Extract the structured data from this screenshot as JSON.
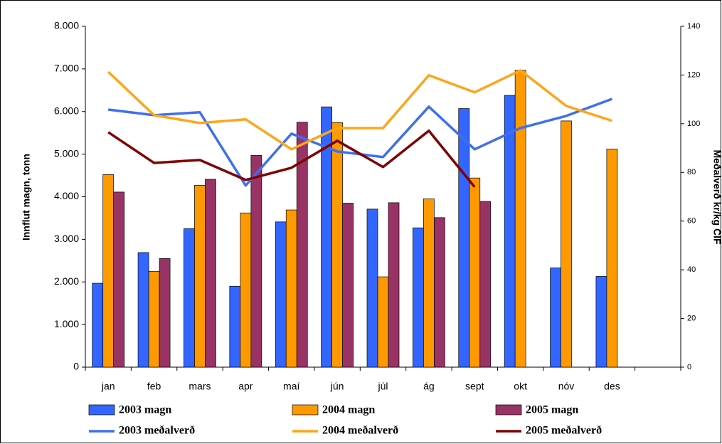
{
  "chart_data": {
    "type": "bar",
    "y_label": "Innflut magn, tonn",
    "y2_label": "Meðalverð kr/kg CIF",
    "categories": [
      "jan",
      "feb",
      "mars",
      "apr",
      "maí",
      "jún",
      "júl",
      "ág",
      "sept",
      "okt",
      "nóv",
      "des",
      null
    ],
    "series": [
      {
        "name": "2003 magn",
        "type": "bar",
        "color": "#3366ff",
        "values": [
          1970,
          2690,
          3250,
          1900,
          3410,
          6110,
          3710,
          3270,
          6070,
          6380,
          2330,
          2130,
          null
        ]
      },
      {
        "name": "2004 magn",
        "type": "bar",
        "color": "#ff9900",
        "values": [
          4520,
          2250,
          4270,
          3620,
          3690,
          5740,
          2120,
          3950,
          4440,
          6970,
          5780,
          5120,
          null
        ]
      },
      {
        "name": "2005 magn",
        "type": "bar",
        "color": "#993366",
        "values": [
          4110,
          2550,
          4410,
          4970,
          5750,
          3850,
          3860,
          3510,
          3890,
          null,
          null,
          null,
          null
        ]
      },
      {
        "name": "2003 meðalverð",
        "type": "line",
        "axis": "y2",
        "color": "#3f6fef",
        "values": [
          105.8,
          103.5,
          104.7,
          74.6,
          95.9,
          88.6,
          86.3,
          107,
          89.5,
          98.2,
          103.2,
          110.2,
          null
        ]
      },
      {
        "name": "2004 meðalverð",
        "type": "line",
        "axis": "y2",
        "color": "#ffa51a",
        "values": [
          121.3,
          103.5,
          100.3,
          101.8,
          89.5,
          98.2,
          98.2,
          119.9,
          112.9,
          121.9,
          107.3,
          101.2,
          null
        ]
      },
      {
        "name": "2005 meðalverð",
        "type": "line",
        "axis": "y2",
        "color": "#800000",
        "values": [
          96.5,
          83.9,
          85.1,
          76.9,
          81.9,
          93,
          82.2,
          97.1,
          74,
          null,
          null,
          null,
          null
        ]
      }
    ],
    "ylim": [
      0,
      8000
    ],
    "yticks": [
      0,
      {
        "value": 1000,
        "label": "1.000"
      },
      {
        "value": 2000,
        "label": "2.000"
      },
      {
        "value": 3000,
        "label": "3.000"
      },
      {
        "value": 4000,
        "label": "4.000"
      },
      {
        "value": 5000,
        "label": "5.000"
      },
      {
        "value": 6000,
        "label": "6.000"
      },
      {
        "value": 7000,
        "label": "7.000"
      },
      {
        "value": 8000,
        "label": "8.000"
      }
    ],
    "y2lim": [
      0,
      140
    ],
    "y2ticks": [
      0,
      20,
      40,
      60,
      80,
      100,
      120,
      140
    ],
    "legend": "bottom"
  }
}
